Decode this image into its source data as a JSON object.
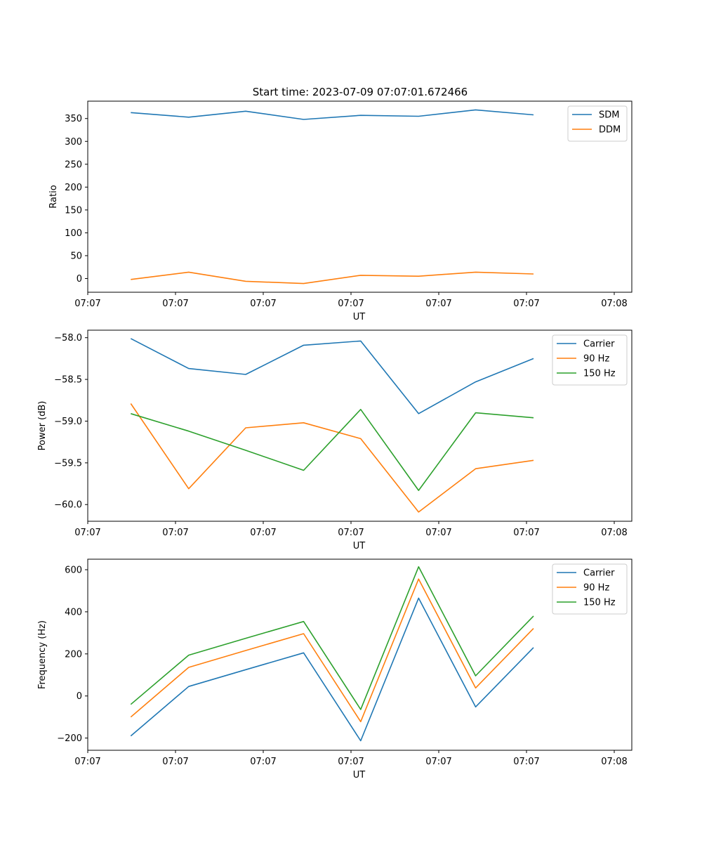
{
  "figure": {
    "title": "Start time: 2023-07-09 07:07:01.672466"
  },
  "colors": {
    "c0": "#1f77b4",
    "c1": "#ff7f0e",
    "c2": "#2ca02c"
  },
  "chart_data": [
    {
      "type": "line",
      "title": "Start time: 2023-07-09 07:07:01.672466",
      "xlabel": "UT",
      "ylabel": "Ratio",
      "xlim": [
        0,
        6.2
      ],
      "ylim": [
        -30,
        388
      ],
      "xticks": [
        0,
        1,
        2,
        3,
        4,
        5,
        6
      ],
      "xtick_labels": [
        "07:07",
        "07:07",
        "07:07",
        "07:07",
        "07:07",
        "07:07",
        "07:08"
      ],
      "yticks": [
        0,
        50,
        100,
        150,
        200,
        250,
        300,
        350
      ],
      "ytick_labels": [
        "0",
        "50",
        "100",
        "150",
        "200",
        "250",
        "300",
        "350"
      ],
      "x": [
        0.49,
        1.15,
        1.8,
        2.46,
        3.11,
        3.77,
        4.42,
        5.08
      ],
      "legend": "top-right",
      "series": [
        {
          "name": "SDM",
          "color": "#1f77b4",
          "values": [
            363,
            353,
            366,
            348,
            357,
            355,
            369,
            358
          ]
        },
        {
          "name": "DDM",
          "color": "#ff7f0e",
          "values": [
            -2,
            14,
            -6,
            -11,
            7,
            5,
            14,
            10
          ]
        }
      ]
    },
    {
      "type": "line",
      "title": "",
      "xlabel": "UT",
      "ylabel": "Power (dB)",
      "xlim": [
        0,
        6.2
      ],
      "ylim": [
        -60.2,
        -57.91
      ],
      "xticks": [
        0,
        1,
        2,
        3,
        4,
        5,
        6
      ],
      "xtick_labels": [
        "07:07",
        "07:07",
        "07:07",
        "07:07",
        "07:07",
        "07:07",
        "07:08"
      ],
      "yticks": [
        -60.0,
        -59.5,
        -59.0,
        -58.5,
        -58.0
      ],
      "ytick_labels": [
        "−60.0",
        "−59.5",
        "−59.0",
        "−58.5",
        "−58.0"
      ],
      "x": [
        0.49,
        1.15,
        1.8,
        2.46,
        3.11,
        3.77,
        4.42,
        5.08
      ],
      "legend": "top-right",
      "series": [
        {
          "name": "Carrier",
          "color": "#1f77b4",
          "values": [
            -58.01,
            -58.37,
            -58.44,
            -58.09,
            -58.04,
            -58.91,
            -58.53,
            -58.25
          ]
        },
        {
          "name": "90 Hz",
          "color": "#ff7f0e",
          "values": [
            -58.79,
            -59.81,
            -59.08,
            -59.02,
            -59.21,
            -60.09,
            -59.57,
            -59.47
          ]
        },
        {
          "name": "150 Hz",
          "color": "#2ca02c",
          "values": [
            -58.91,
            -59.12,
            -59.35,
            -59.59,
            -58.86,
            -59.83,
            -58.9,
            -58.96
          ]
        }
      ]
    },
    {
      "type": "line",
      "title": "",
      "xlabel": "UT",
      "ylabel": "Frequency (Hz)",
      "xlim": [
        0,
        6.2
      ],
      "ylim": [
        -258,
        650
      ],
      "xticks": [
        0,
        1,
        2,
        3,
        4,
        5,
        6
      ],
      "xtick_labels": [
        "07:07",
        "07:07",
        "07:07",
        "07:07",
        "07:07",
        "07:07",
        "07:08"
      ],
      "yticks": [
        -200,
        0,
        200,
        400,
        600
      ],
      "ytick_labels": [
        "−200",
        "0",
        "200",
        "400",
        "600"
      ],
      "x": [
        0.49,
        1.15,
        1.8,
        2.46,
        3.11,
        3.77,
        4.42,
        5.08
      ],
      "legend": "top-right",
      "series": [
        {
          "name": "Carrier",
          "color": "#1f77b4",
          "values": [
            -190,
            45,
            125,
            205,
            -213,
            465,
            -52,
            230
          ]
        },
        {
          "name": "90 Hz",
          "color": "#ff7f0e",
          "values": [
            -100,
            136,
            216,
            296,
            -122,
            556,
            38,
            321
          ]
        },
        {
          "name": "150 Hz",
          "color": "#2ca02c",
          "values": [
            -40,
            194,
            274,
            354,
            -64,
            614,
            96,
            380
          ]
        }
      ]
    }
  ]
}
